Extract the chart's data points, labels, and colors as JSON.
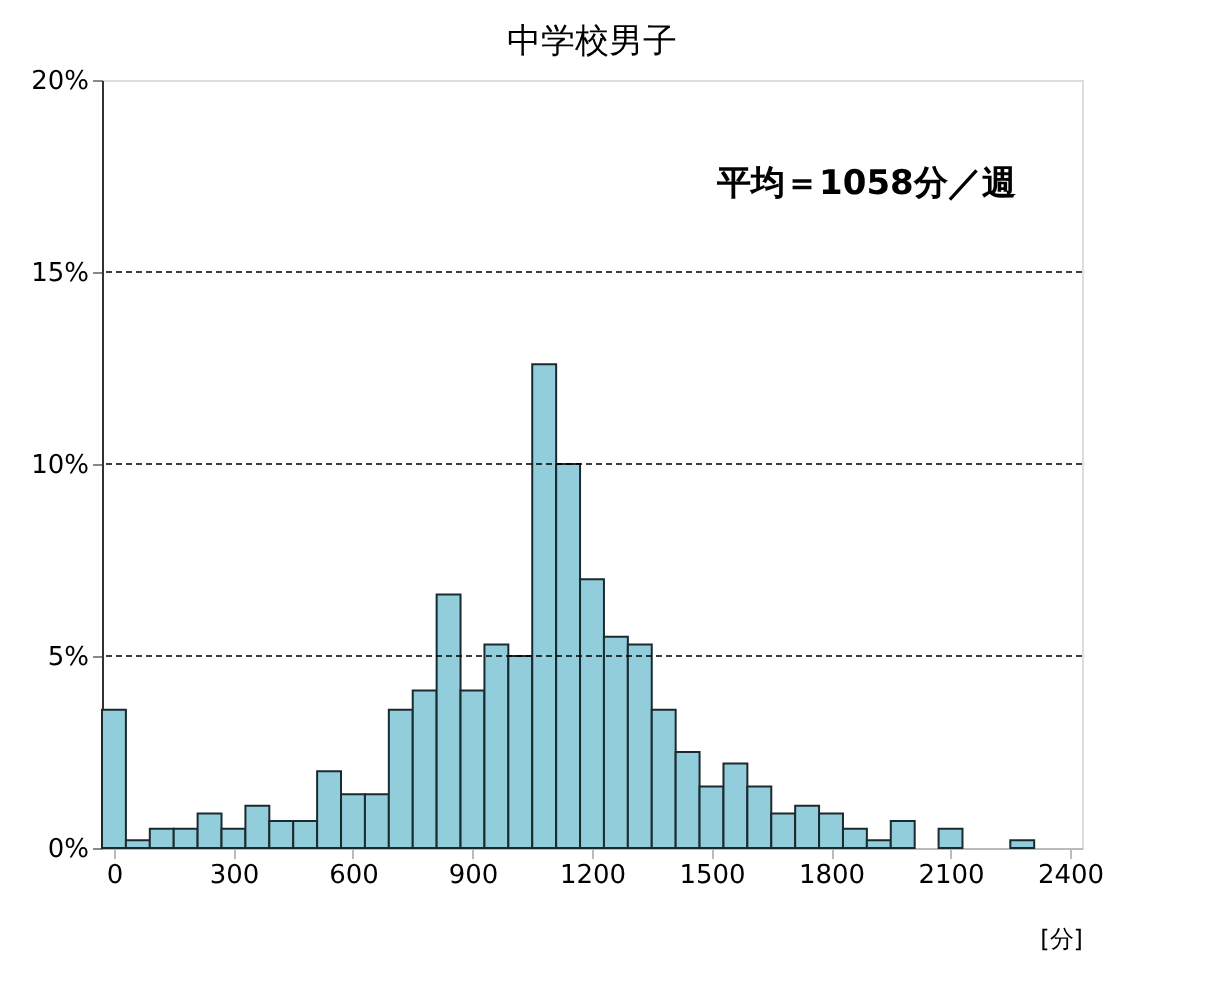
{
  "chart_data": {
    "type": "histogram",
    "title": "中学校男子",
    "xlabel": "[分]",
    "annotations": [
      "平均＝1058分／週"
    ],
    "bins": [
      -30,
      30,
      90,
      150,
      210,
      270,
      330,
      390,
      450,
      510,
      570,
      630,
      690,
      750,
      810,
      870,
      930,
      990,
      1050,
      1110,
      1170,
      1230,
      1290,
      1350,
      1410,
      1470,
      1530,
      1590,
      1650,
      1710,
      1770,
      1830,
      1890,
      1950,
      2010,
      2070,
      2130,
      2190,
      2250,
      2310,
      2370,
      2430
    ],
    "values": [
      3.6,
      0.2,
      0.5,
      0.5,
      0.9,
      0.5,
      1.1,
      0.7,
      0.7,
      2.0,
      1.4,
      1.4,
      3.6,
      4.1,
      6.6,
      4.1,
      5.3,
      5.0,
      12.6,
      10.0,
      7.0,
      5.5,
      5.3,
      3.6,
      2.5,
      1.6,
      2.2,
      1.6,
      0.9,
      1.1,
      0.9,
      0.5,
      0.2,
      0.7,
      0,
      0.5,
      0,
      0,
      0.2,
      0,
      0
    ],
    "color": "#92cddc",
    "xlim": [
      -30,
      2430
    ],
    "xticks": [
      0,
      300,
      600,
      900,
      1200,
      1500,
      1800,
      2100,
      2400
    ],
    "ylim": [
      0,
      20
    ],
    "yticks": [
      {
        "value": 0,
        "label": "0%"
      },
      {
        "value": 5,
        "label": "5%"
      },
      {
        "value": 10,
        "label": "10%"
      },
      {
        "value": 15,
        "label": "15%"
      },
      {
        "value": 20,
        "label": "20%"
      }
    ],
    "grid": "y"
  }
}
